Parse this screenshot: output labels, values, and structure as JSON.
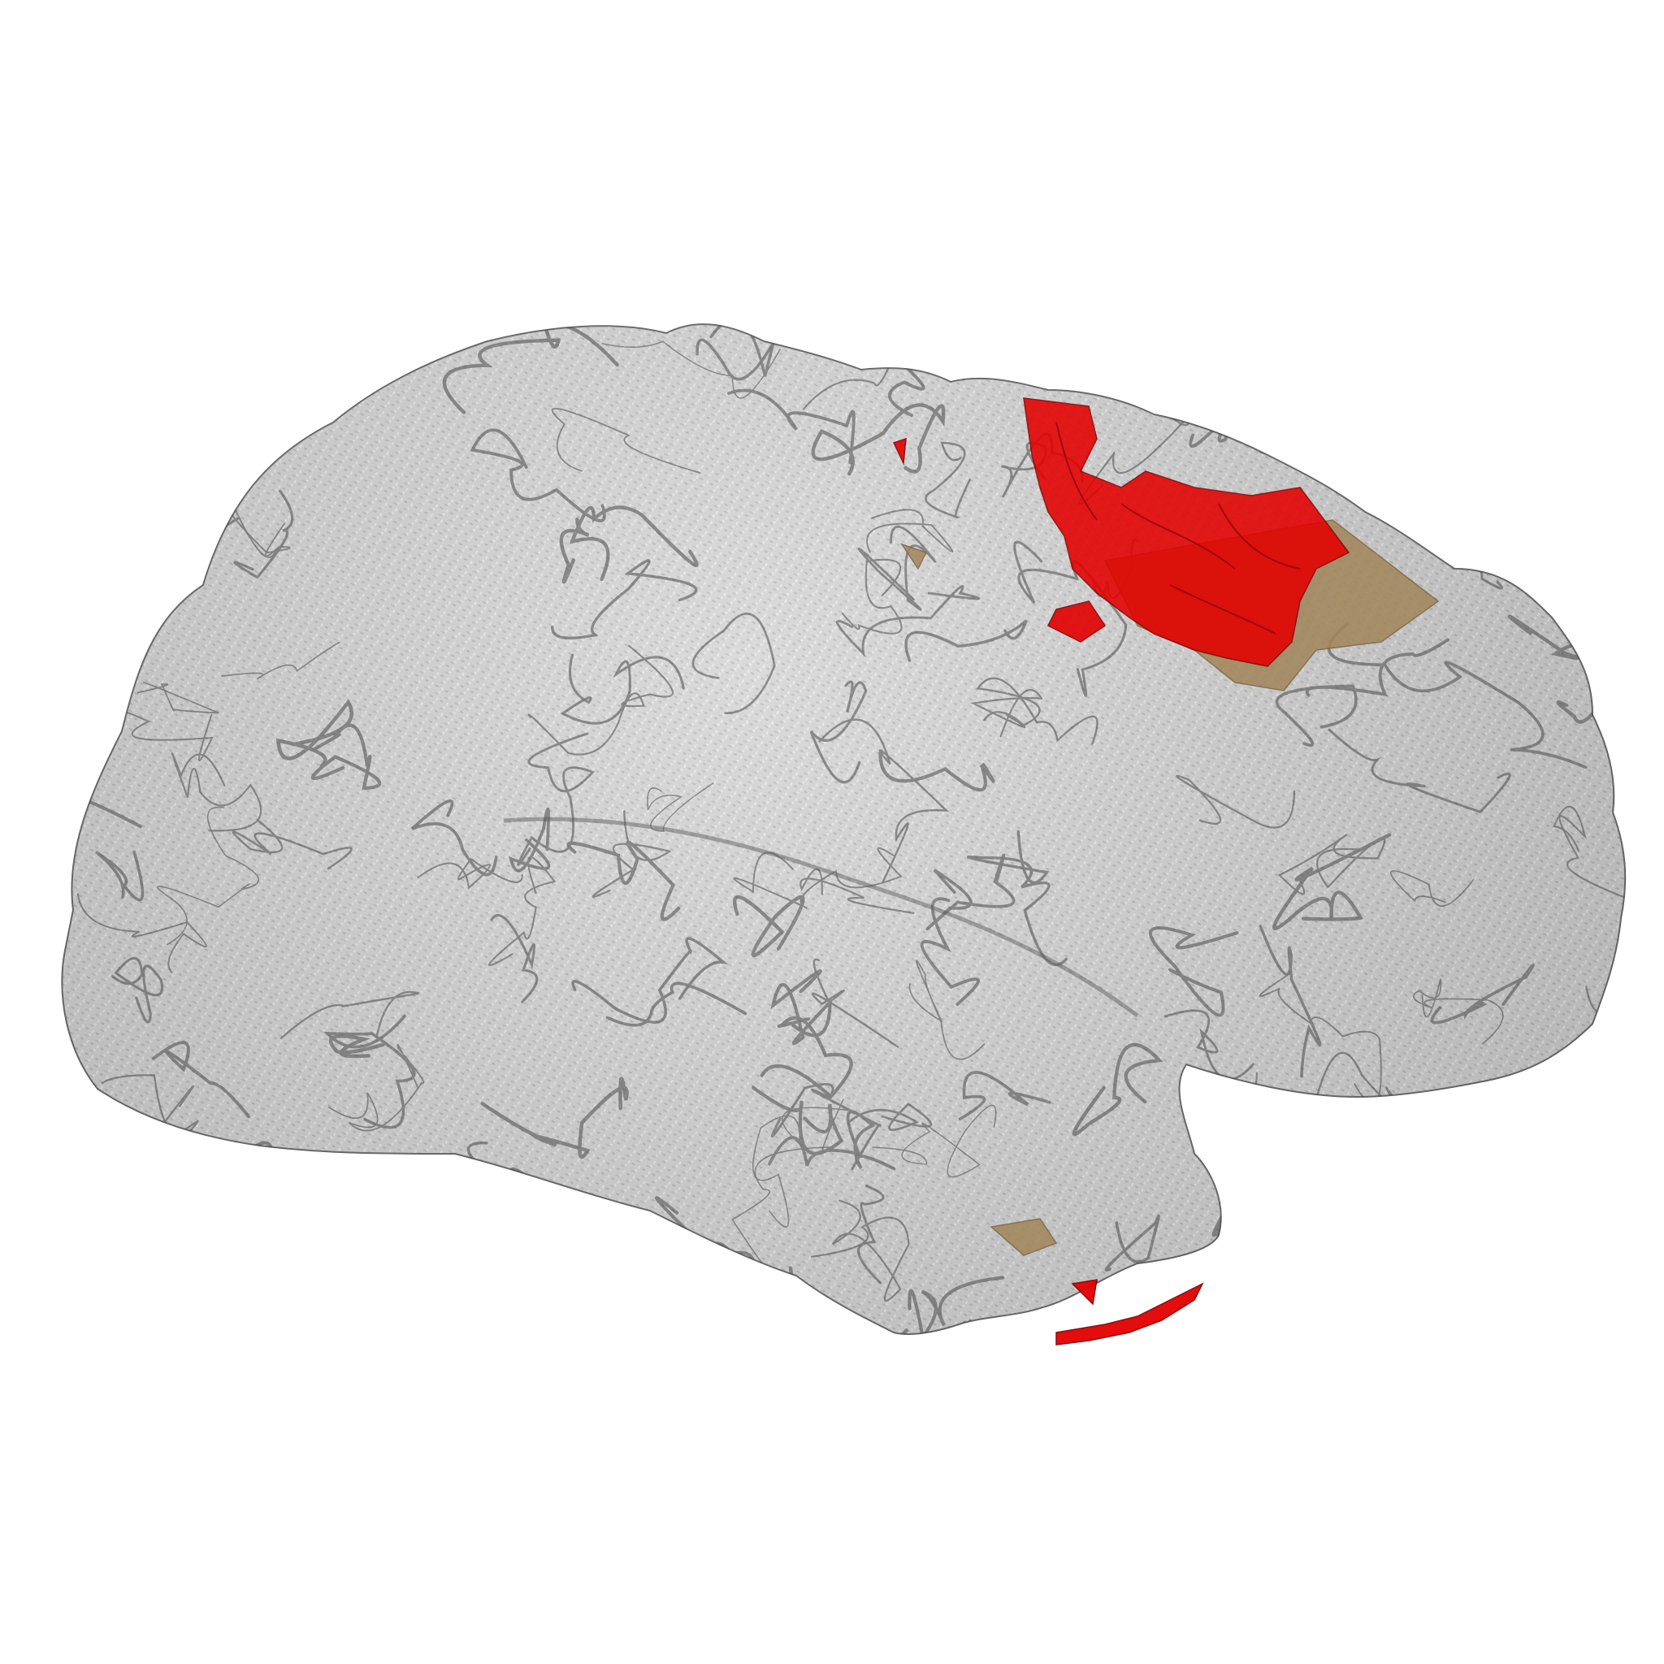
{
  "scene": {
    "subject": "brain-surface-render",
    "background_color": "#ffffff",
    "cortex_fill": "#bdbdbd",
    "cortex_edge": "#3a3a3a",
    "cortex_opacity": 0.72,
    "highlight_color": "#e30000",
    "secondary_region_color": "#a08559"
  }
}
